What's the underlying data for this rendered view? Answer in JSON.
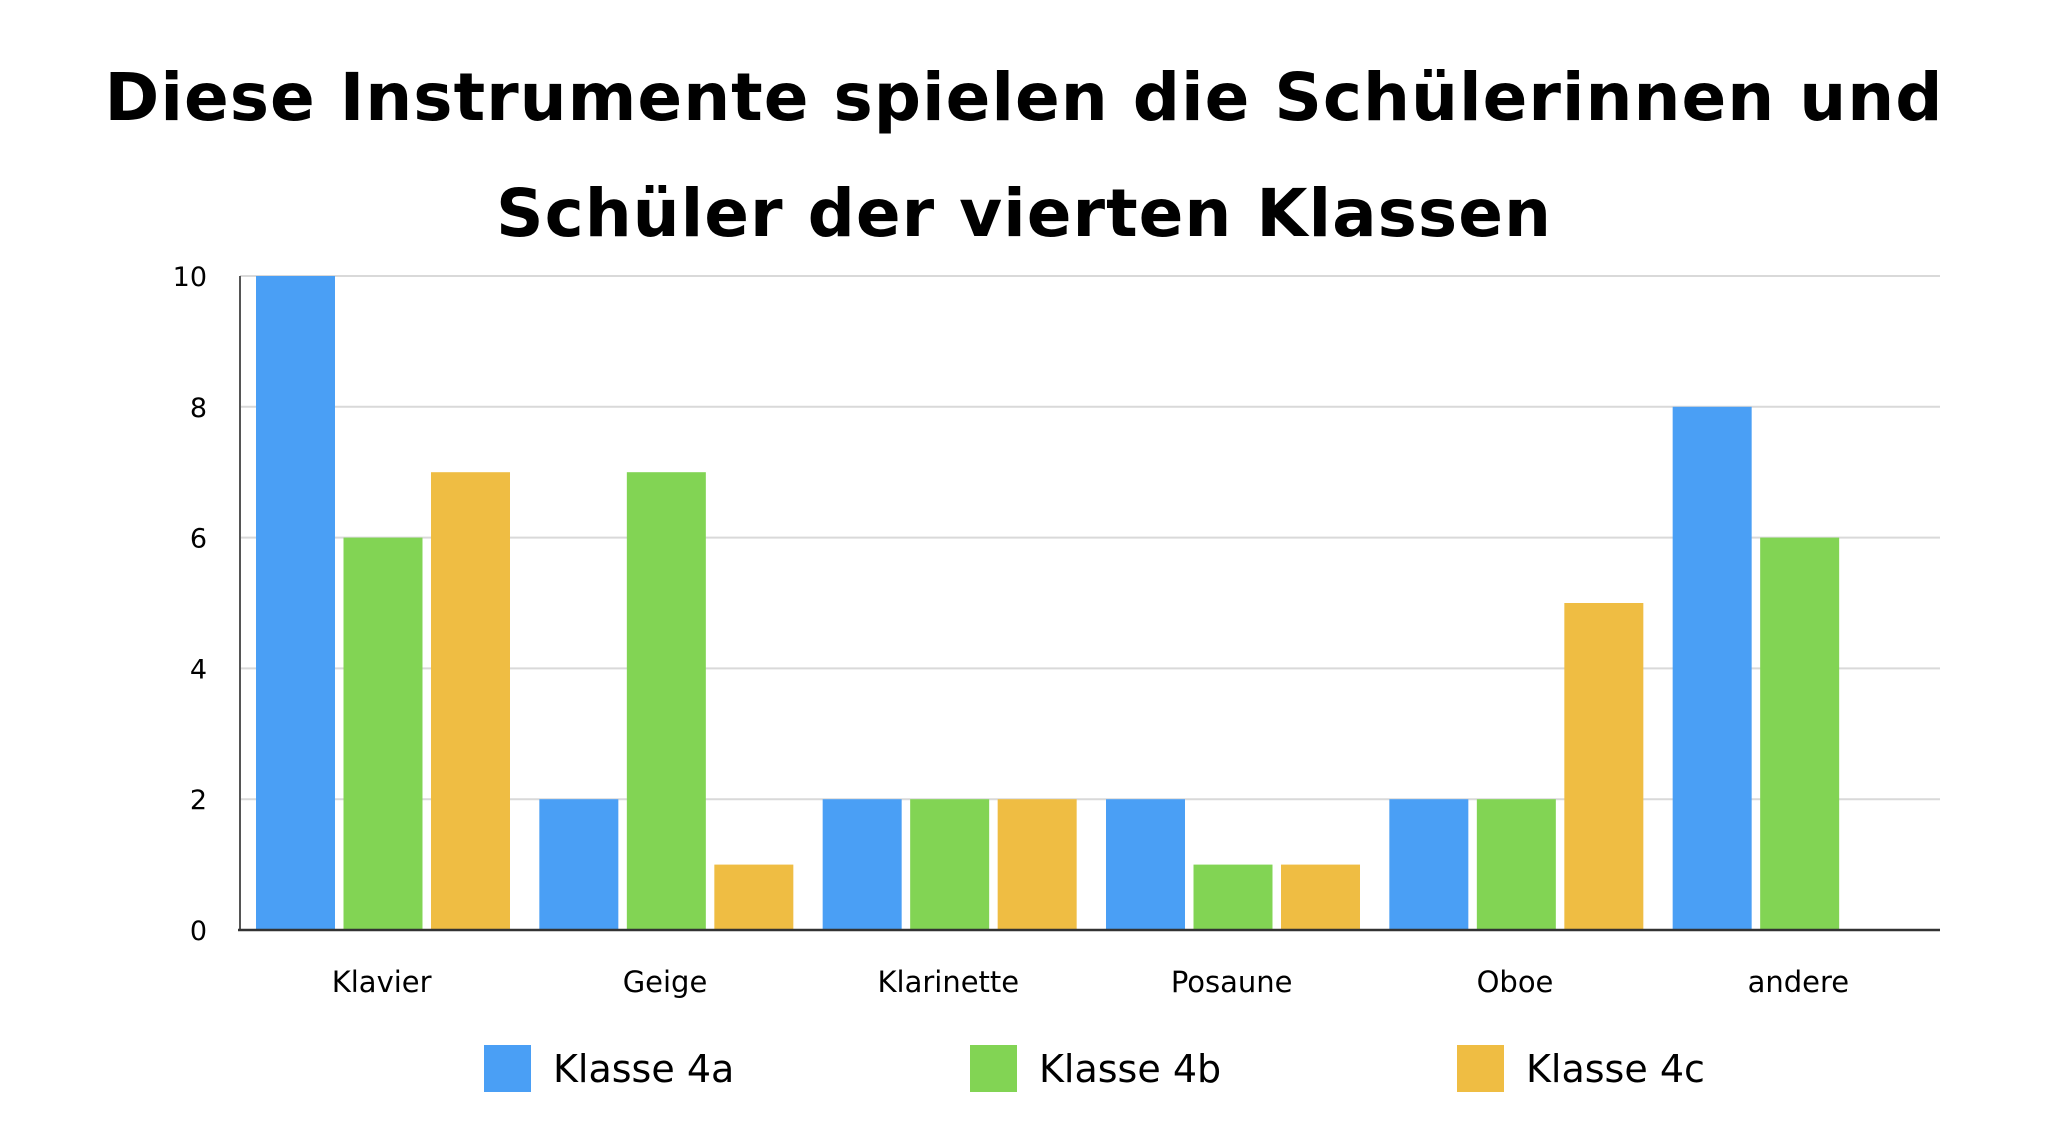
{
  "chart_data": {
    "type": "bar",
    "title_lines": [
      "Diese Instrumente spielen die Schülerinnen und",
      "Schüler der vierten Klassen"
    ],
    "categories": [
      "Klavier",
      "Geige",
      "Klarinette",
      "Posaune",
      "Oboe",
      "andere"
    ],
    "series": [
      {
        "name": "Klasse 4a",
        "color": "#4a9ff5",
        "values": [
          10,
          2,
          2,
          2,
          2,
          8
        ]
      },
      {
        "name": "Klasse 4b",
        "color": "#82d454",
        "values": [
          6,
          7,
          2,
          1,
          2,
          6
        ]
      },
      {
        "name": "Klasse 4c",
        "color": "#efbd43",
        "values": [
          7,
          1,
          2,
          1,
          5,
          0
        ]
      }
    ],
    "ylim": [
      0,
      10
    ],
    "yticks": [
      "0",
      "2",
      "4",
      "6",
      "8",
      "10"
    ],
    "grid": true,
    "legend_position": "bottom"
  }
}
